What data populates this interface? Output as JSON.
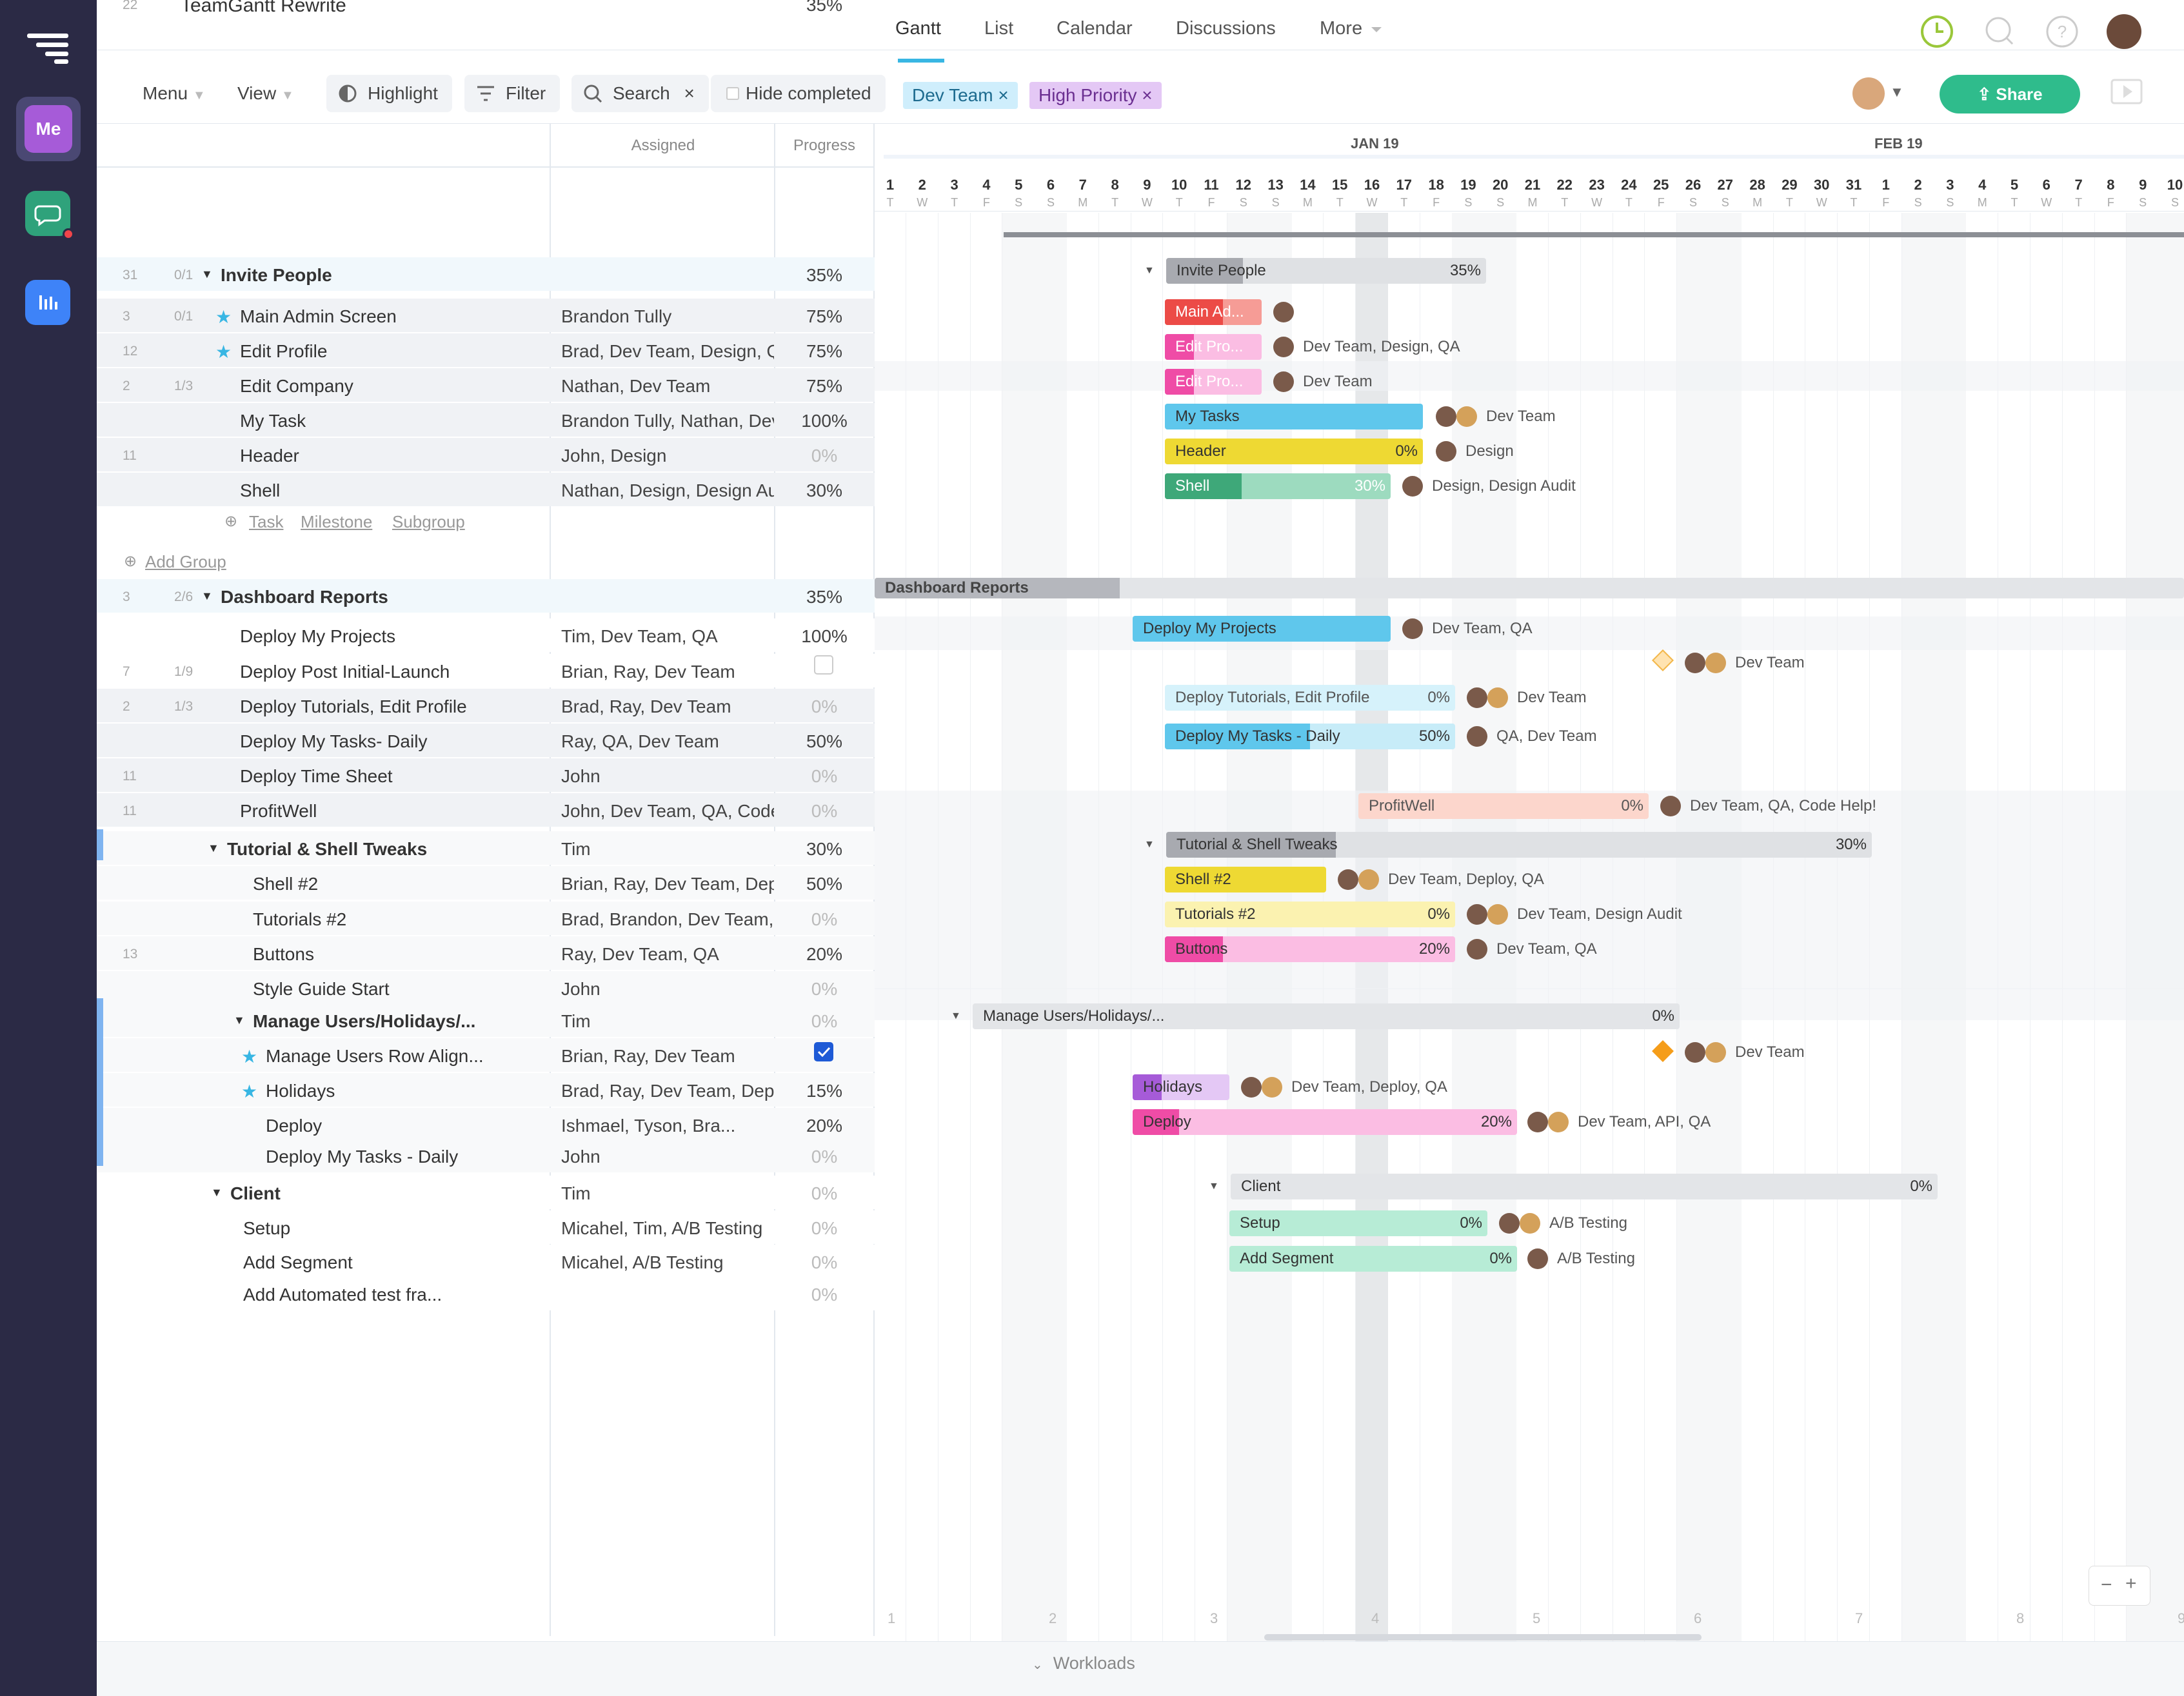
{
  "nav": {
    "tabs": [
      "Gantt",
      "List",
      "Calendar",
      "Discussions",
      "More"
    ]
  },
  "toolbar": {
    "menu": "Menu",
    "view": "View",
    "highlight": "Highlight",
    "filter": "Filter",
    "search": "Search",
    "hide_completed": "Hide completed",
    "chip1": "Dev Team",
    "chip2": "High Priority",
    "share": "Share",
    "close": "×"
  },
  "sidebar": {
    "me": "Me"
  },
  "columns": {
    "assigned": "Assigned",
    "progress": "Progress"
  },
  "months": [
    "JAN 19",
    "FEB 19"
  ],
  "days": [
    "1",
    "2",
    "3",
    "4",
    "5",
    "6",
    "7",
    "8",
    "9",
    "10",
    "11",
    "12",
    "13",
    "14",
    "15",
    "16",
    "17",
    "18",
    "19",
    "20",
    "21",
    "22",
    "23",
    "24",
    "25",
    "26",
    "27",
    "28",
    "29",
    "30",
    "31",
    "1",
    "2",
    "3",
    "4",
    "5",
    "6",
    "7",
    "8",
    "9",
    "10"
  ],
  "dows": [
    "T",
    "W",
    "T",
    "F",
    "S",
    "S",
    "M",
    "T",
    "W",
    "T",
    "F",
    "S",
    "S",
    "M",
    "T",
    "W",
    "T",
    "F",
    "S",
    "S",
    "M",
    "T",
    "W",
    "T",
    "F",
    "S",
    "S",
    "M",
    "T",
    "W",
    "T",
    "F",
    "S",
    "S",
    "M",
    "T",
    "W",
    "T",
    "F",
    "S",
    "S"
  ],
  "project": {
    "name": "TeamGantt Rewrite",
    "progress": "35%",
    "comments": "22"
  },
  "rows": [
    {
      "name": "Invite People",
      "progress": "35%",
      "comments": "31",
      "subtasks": "0/1"
    },
    {
      "name": "Main Admin Screen",
      "assigned": "Brandon Tully",
      "progress": "75%",
      "comments": "3",
      "subtasks": "0/1"
    },
    {
      "name": "Edit Profile",
      "assigned": "Brad, Dev Team, Design, QA",
      "progress": "75%",
      "comments": "12"
    },
    {
      "name": "Edit Company",
      "assigned": "Nathan, Dev Team",
      "progress": "75%",
      "comments": "2",
      "subtasks": "1/3"
    },
    {
      "name": "My Task",
      "assigned": "Brandon Tully, Nathan, Dev Team",
      "progress": "100%"
    },
    {
      "name": "Header",
      "assigned": "John, Design",
      "progress": "0%",
      "comments": "11"
    },
    {
      "name": "Shell",
      "assigned": "Nathan, Design, Design Audit",
      "progress": "30%"
    },
    {
      "name": "Dashboard Reports",
      "progress": "35%",
      "comments": "3",
      "subtasks": "2/6"
    },
    {
      "name": "Deploy My Projects",
      "assigned": "Tim, Dev Team, QA",
      "progress": "100%"
    },
    {
      "name": "Deploy Post Initial-Launch",
      "assigned": "Brian, Ray, Dev Team",
      "comments": "7",
      "subtasks": "1/9"
    },
    {
      "name": "Deploy Tutorials, Edit Profile",
      "assigned": "Brad, Ray, Dev Team",
      "progress": "0%",
      "comments": "2",
      "subtasks": "1/3"
    },
    {
      "name": "Deploy My Tasks- Daily",
      "assigned": "Ray, QA, Dev Team",
      "progress": "50%"
    },
    {
      "name": "Deploy Time Sheet",
      "assigned": "John",
      "progress": "0%",
      "comments": "11"
    },
    {
      "name": "ProfitWell",
      "assigned": "John, Dev Team, QA, Code Help!",
      "progress": "0%",
      "comments": "11"
    },
    {
      "name": "Tutorial & Shell Tweaks",
      "assigned": "Tim",
      "progress": "30%"
    },
    {
      "name": "Shell #2",
      "assigned": "Brian, Ray, Dev Team, Deploy, QA",
      "progress": "50%"
    },
    {
      "name": "Tutorials #2",
      "assigned": "Brad, Brandon, Dev Team, Design Audit",
      "progress": "0%"
    },
    {
      "name": "Buttons",
      "assigned": "Ray, Dev Team, QA",
      "progress": "20%",
      "comments": "13"
    },
    {
      "name": "Style Guide Start",
      "assigned": "John",
      "progress": "0%"
    },
    {
      "name": "Manage Users/Holidays/...",
      "assigned": "Tim",
      "progress": "0%"
    },
    {
      "name": "Manage Users Row Align...",
      "assigned": "Brian, Ray, Dev Team"
    },
    {
      "name": "Holidays",
      "assigned": "Brad, Ray, Dev Team, Deploy, QA",
      "progress": "15%"
    },
    {
      "name": "Deploy",
      "assigned": "Ishmael, Tyson, Bra...",
      "progress": "20%"
    },
    {
      "name": "Deploy My Tasks - Daily",
      "assigned": "John",
      "progress": "0%"
    },
    {
      "name": "Client",
      "assigned": "Tim",
      "progress": "0%"
    },
    {
      "name": "Setup",
      "assigned": "Micahel, Tim, A/B Testing",
      "progress": "0%"
    },
    {
      "name": "Add Segment",
      "assigned": "Micahel, A/B Testing",
      "progress": "0%"
    },
    {
      "name": "Add Automated test fra...",
      "progress": "0%"
    }
  ],
  "add": {
    "task": "Task",
    "milestone": "Milestone",
    "subgroup": "Subgroup",
    "group": "Add Group"
  },
  "gantt": {
    "invite": {
      "label": "Invite People",
      "pct": "35%"
    },
    "main_admin": "Main Ad...",
    "edit_profile": {
      "label": "Edit Pro...",
      "who": "Dev Team, Design, QA"
    },
    "edit_company": {
      "label": "Edit Pro...",
      "who": "Dev Team"
    },
    "my_tasks": {
      "label": "My Tasks",
      "who": "Dev Team"
    },
    "header": {
      "label": "Header",
      "pct": "0%",
      "who": "Design"
    },
    "shell": {
      "label": "Shell",
      "pct": "30%",
      "who": "Design, Design Audit"
    },
    "dashboard": "Dashboard Reports",
    "deploy_projects": {
      "label": "Deploy My Projects",
      "who": "Dev Team, QA"
    },
    "deploy_post": {
      "who": "Dev Team"
    },
    "deploy_tut": {
      "label": "Deploy Tutorials, Edit Profile",
      "pct": "0%",
      "who": "Dev Team"
    },
    "deploy_daily": {
      "label": "Deploy My Tasks - Daily",
      "pct": "50%",
      "who": "QA, Dev Team"
    },
    "profitwell": {
      "label": "ProfitWell",
      "pct": "0%",
      "who": "Dev Team, QA, Code Help!"
    },
    "tutorial": {
      "label": "Tutorial & Shell Tweaks",
      "pct": "30%"
    },
    "shell2": {
      "label": "Shell #2",
      "who": "Dev Team, Deploy, QA"
    },
    "tut2": {
      "label": "Tutorials #2",
      "pct": "0%",
      "who": "Dev Team, Design Audit"
    },
    "buttons": {
      "label": "Buttons",
      "pct": "20%",
      "who": "Dev Team, QA"
    },
    "manage": {
      "label": "Manage Users/Holidays/...",
      "pct": "0%"
    },
    "manage_row": {
      "who": "Dev Team"
    },
    "holidays": {
      "label": "Holidays",
      "who": "Dev Team, Deploy, QA"
    },
    "deploy": {
      "label": "Deploy",
      "pct": "20%",
      "who": "Dev Team, API, QA"
    },
    "client": {
      "label": "Client",
      "pct": "0%"
    },
    "setup": {
      "label": "Setup",
      "pct": "0%",
      "who": "A/B Testing"
    },
    "segment": {
      "label": "Add Segment",
      "pct": "0%",
      "who": "A/B Testing"
    }
  },
  "weeks": [
    "1",
    "2",
    "3",
    "4",
    "5",
    "6",
    "7",
    "8",
    "9"
  ],
  "bottom": {
    "workloads": "Workloads"
  },
  "zoom": {
    "minus": "−",
    "plus": "+"
  },
  "colors": {
    "accent": "#38b6e3",
    "green": "#2fbc8c",
    "purple": "#a65bd8"
  }
}
